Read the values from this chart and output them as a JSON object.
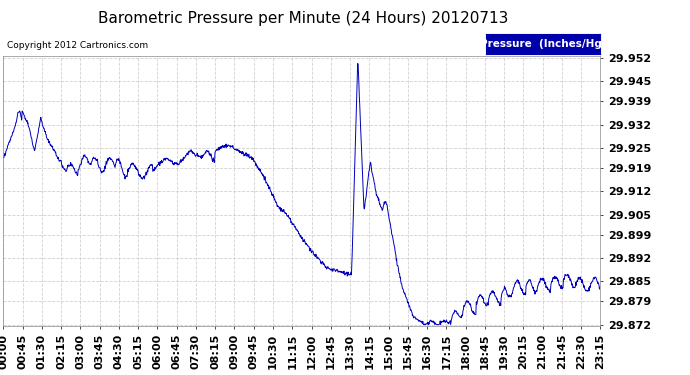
{
  "title": "Barometric Pressure per Minute (24 Hours) 20120713",
  "copyright": "Copyright 2012 Cartronics.com",
  "legend_label": "Pressure  (Inches/Hg)",
  "line_color": "#0000bb",
  "background_color": "#ffffff",
  "grid_color": "#cccccc",
  "ylim": [
    29.872,
    29.952
  ],
  "yticks": [
    29.952,
    29.945,
    29.939,
    29.932,
    29.925,
    29.919,
    29.912,
    29.905,
    29.899,
    29.892,
    29.885,
    29.879,
    29.872
  ],
  "xtick_labels": [
    "00:00",
    "00:45",
    "01:30",
    "02:15",
    "03:00",
    "03:45",
    "04:30",
    "05:15",
    "06:00",
    "06:45",
    "07:30",
    "08:15",
    "09:00",
    "09:45",
    "10:30",
    "11:15",
    "12:00",
    "12:45",
    "13:30",
    "14:15",
    "15:00",
    "15:45",
    "16:30",
    "17:15",
    "18:00",
    "18:45",
    "19:30",
    "20:15",
    "21:00",
    "21:45",
    "22:30",
    "23:15"
  ],
  "num_minutes": 1440,
  "title_fontsize": 11,
  "tick_fontsize": 8
}
